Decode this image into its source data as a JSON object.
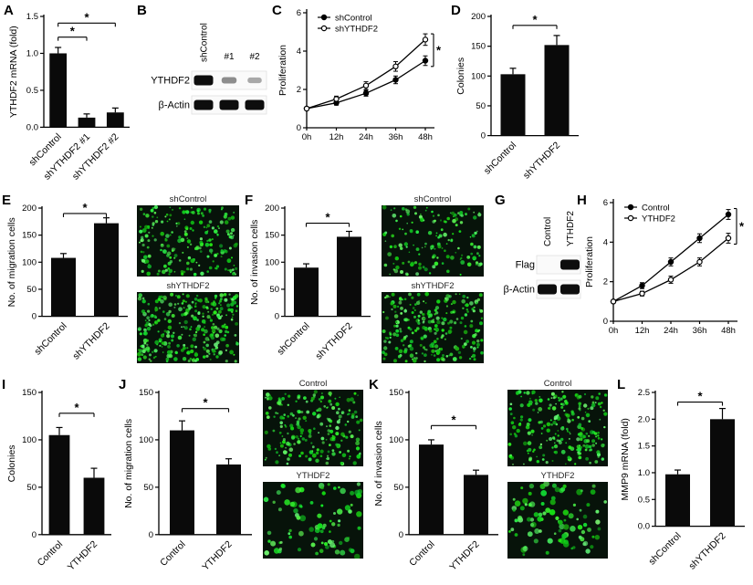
{
  "chart_data": [
    {
      "panel": "A",
      "type": "bar",
      "ylabel": "YTHDF2 mRNA (fold)",
      "ylim": [
        0,
        1.5
      ],
      "yticks": [
        0,
        0.5,
        1.0,
        1.5
      ],
      "categories": [
        "shControl",
        "shYTHDF2 #1",
        "shYTHDF2 #2"
      ],
      "values": [
        1.0,
        0.13,
        0.2
      ],
      "errors": [
        0.08,
        0.05,
        0.06
      ],
      "sig": [
        {
          "a": 0,
          "b": 1,
          "y": 1.22,
          "label": "*"
        },
        {
          "a": 0,
          "b": 2,
          "y": 1.41,
          "label": "*"
        }
      ]
    },
    {
      "panel": "B",
      "type": "blot",
      "lanes": [
        "shControl",
        "#1",
        "#2"
      ],
      "rows": [
        {
          "label": "YTHDF2",
          "bands": [
            1,
            0.35,
            0.22
          ]
        },
        {
          "label": "β-Actin",
          "bands": [
            1,
            1,
            1
          ]
        }
      ]
    },
    {
      "panel": "C",
      "type": "line",
      "ylabel": "Proliferation",
      "ylim": [
        0,
        6
      ],
      "yticks": [
        0,
        2,
        4,
        6
      ],
      "x": [
        "0h",
        "12h",
        "24h",
        "36h",
        "48h"
      ],
      "series": [
        {
          "name": "shControl",
          "marker": "filled",
          "values": [
            1.0,
            1.3,
            1.8,
            2.5,
            3.5
          ],
          "errors": [
            0.08,
            0.12,
            0.15,
            0.2,
            0.25
          ]
        },
        {
          "name": "shYTHDF2",
          "marker": "open",
          "values": [
            1.0,
            1.5,
            2.2,
            3.2,
            4.6
          ],
          "errors": [
            0.08,
            0.15,
            0.2,
            0.25,
            0.3
          ]
        }
      ],
      "sig": "*"
    },
    {
      "panel": "D",
      "type": "bar",
      "ylabel": "Colonies",
      "ylim": [
        0,
        200
      ],
      "yticks": [
        0,
        50,
        100,
        150,
        200
      ],
      "categories": [
        "shControl",
        "shYTHDF2"
      ],
      "values": [
        103,
        152
      ],
      "errors": [
        10,
        16
      ],
      "sig": [
        {
          "a": 0,
          "b": 1,
          "y": 185,
          "label": "*"
        }
      ]
    },
    {
      "panel": "E",
      "type": "bar",
      "ylabel": "No. of migration cells",
      "ylim": [
        0,
        200
      ],
      "yticks": [
        0,
        50,
        100,
        150,
        200
      ],
      "categories": [
        "shControl",
        "shYTHDF2"
      ],
      "values": [
        108,
        172
      ],
      "errors": [
        8,
        10
      ],
      "sig": [
        {
          "a": 0,
          "b": 1,
          "y": 190,
          "label": "*"
        }
      ],
      "micrographs": {
        "type": "micrographs",
        "images": [
          {
            "label": "shControl",
            "cells": 210
          },
          {
            "label": "shYTHDF2",
            "cells": 300
          }
        ]
      }
    },
    {
      "panel": "F",
      "type": "bar",
      "ylabel": "No. of invasion cells",
      "ylim": [
        0,
        200
      ],
      "yticks": [
        0,
        50,
        100,
        150,
        200
      ],
      "categories": [
        "shControl",
        "shYTHDF2"
      ],
      "values": [
        90,
        147
      ],
      "errors": [
        7,
        10
      ],
      "sig": [
        {
          "a": 0,
          "b": 1,
          "y": 172,
          "label": "*"
        }
      ],
      "micrographs": {
        "type": "micrographs",
        "images": [
          {
            "label": "shControl",
            "cells": 150
          },
          {
            "label": "shYTHDF2",
            "cells": 250
          }
        ]
      }
    },
    {
      "panel": "G",
      "type": "blot",
      "lanes": [
        "Control",
        "YTHDF2"
      ],
      "rows": [
        {
          "label": "Flag",
          "bands": [
            0,
            1
          ]
        },
        {
          "label": "β-Actin",
          "bands": [
            1,
            1
          ]
        }
      ]
    },
    {
      "panel": "H",
      "type": "line",
      "ylabel": "Proliferation",
      "ylim": [
        0,
        6
      ],
      "yticks": [
        0,
        2,
        4,
        6
      ],
      "x": [
        "0h",
        "12h",
        "24h",
        "36h",
        "48h"
      ],
      "series": [
        {
          "name": "Control",
          "marker": "filled",
          "values": [
            1.0,
            1.8,
            3.0,
            4.2,
            5.4
          ],
          "errors": [
            0.08,
            0.15,
            0.2,
            0.22,
            0.25
          ]
        },
        {
          "name": "YTHDF2",
          "marker": "open",
          "values": [
            1.0,
            1.4,
            2.1,
            3.0,
            4.2
          ],
          "errors": [
            0.08,
            0.12,
            0.18,
            0.2,
            0.25
          ]
        }
      ],
      "sig": "*"
    },
    {
      "panel": "I",
      "type": "bar",
      "ylabel": "Colonies",
      "ylim": [
        0,
        150
      ],
      "yticks": [
        0,
        50,
        100,
        150
      ],
      "categories": [
        "Control",
        "YTHDF2"
      ],
      "values": [
        105,
        60
      ],
      "errors": [
        8,
        10
      ],
      "sig": [
        {
          "a": 0,
          "b": 1,
          "y": 128,
          "label": "*"
        }
      ]
    },
    {
      "panel": "J",
      "type": "bar",
      "ylabel": "No. of migration cells",
      "ylim": [
        0,
        150
      ],
      "yticks": [
        0,
        50,
        100,
        150
      ],
      "categories": [
        "Control",
        "YTHDF2"
      ],
      "values": [
        110,
        74
      ],
      "errors": [
        10,
        6
      ],
      "sig": [
        {
          "a": 0,
          "b": 1,
          "y": 133,
          "label": "*"
        }
      ],
      "micrographs": {
        "type": "micrographs",
        "images": [
          {
            "label": "Control",
            "cells": 210
          },
          {
            "label": "YTHDF2",
            "cells": 85
          }
        ]
      }
    },
    {
      "panel": "K",
      "type": "bar",
      "ylabel": "No. of invasion cells",
      "ylim": [
        0,
        150
      ],
      "yticks": [
        0,
        50,
        100,
        150
      ],
      "categories": [
        "Control",
        "YTHDF2"
      ],
      "values": [
        95,
        63
      ],
      "errors": [
        5,
        5
      ],
      "sig": [
        {
          "a": 0,
          "b": 1,
          "y": 115,
          "label": "*"
        }
      ],
      "micrographs": {
        "type": "micrographs",
        "images": [
          {
            "label": "Control",
            "cells": 230
          },
          {
            "label": "YTHDF2",
            "cells": 95
          }
        ]
      }
    },
    {
      "panel": "L",
      "type": "bar",
      "ylabel": "MMP9 mRNA (fold)",
      "ylim": [
        0,
        2.5
      ],
      "yticks": [
        0,
        0.5,
        1.0,
        1.5,
        2.0,
        2.5
      ],
      "categories": [
        "shControl",
        "shYTHDF2"
      ],
      "values": [
        0.97,
        2.0
      ],
      "errors": [
        0.08,
        0.2
      ],
      "sig": [
        {
          "a": 0,
          "b": 1,
          "y": 2.32,
          "label": "*"
        }
      ]
    }
  ],
  "colors": {
    "bar_fill": "#0a0a0a",
    "axis": "#000000",
    "micrograph_bg": "#07130a",
    "cell_green": "#3ce63c"
  }
}
